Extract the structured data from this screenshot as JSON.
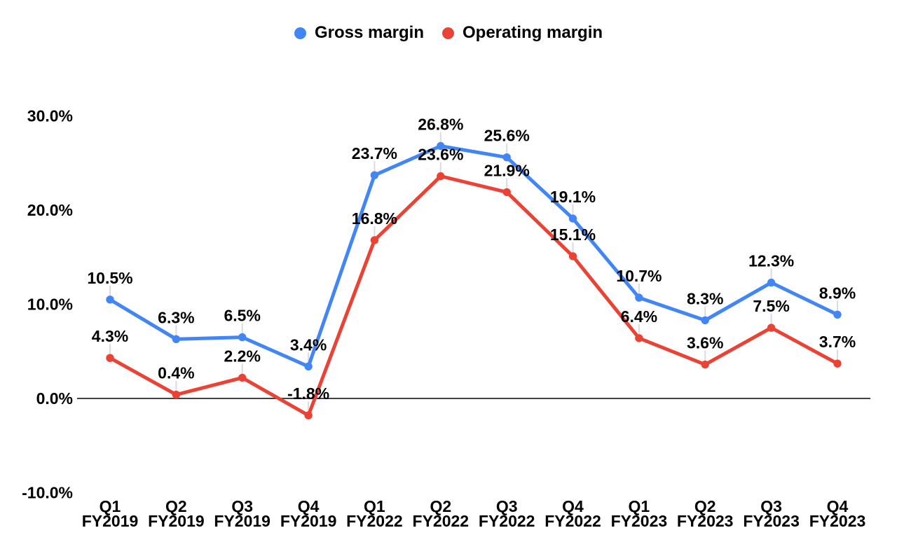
{
  "chart_data": {
    "type": "line",
    "title": "",
    "legend_position": "top",
    "grid": false,
    "ylim": [
      -10,
      30
    ],
    "ylabel": "",
    "xlabel": "",
    "y_ticks": [
      {
        "value": 30,
        "label": "30.0%"
      },
      {
        "value": 20,
        "label": "20.0%"
      },
      {
        "value": 10,
        "label": "10.0%"
      },
      {
        "value": 0,
        "label": "0.0%"
      },
      {
        "value": -10,
        "label": "-10.0%"
      }
    ],
    "categories": [
      {
        "quarter": "Q1",
        "fiscal_year": "FY2019"
      },
      {
        "quarter": "Q2",
        "fiscal_year": "FY2019"
      },
      {
        "quarter": "Q3",
        "fiscal_year": "FY2019"
      },
      {
        "quarter": "Q4",
        "fiscal_year": "FY2019"
      },
      {
        "quarter": "Q1",
        "fiscal_year": "FY2022"
      },
      {
        "quarter": "Q2",
        "fiscal_year": "FY2022"
      },
      {
        "quarter": "Q3",
        "fiscal_year": "FY2022"
      },
      {
        "quarter": "Q4",
        "fiscal_year": "FY2022"
      },
      {
        "quarter": "Q1",
        "fiscal_year": "FY2023"
      },
      {
        "quarter": "Q2",
        "fiscal_year": "FY2023"
      },
      {
        "quarter": "Q3",
        "fiscal_year": "FY2023"
      },
      {
        "quarter": "Q4",
        "fiscal_year": "FY2023"
      }
    ],
    "series": [
      {
        "name": "Gross margin",
        "color": "#4285F4",
        "values": [
          10.5,
          6.3,
          6.5,
          3.4,
          23.7,
          26.8,
          25.6,
          19.1,
          10.7,
          8.3,
          12.3,
          8.9
        ],
        "labels": [
          "10.5%",
          "6.3%",
          "6.5%",
          "3.4%",
          "23.7%",
          "26.8%",
          "25.6%",
          "19.1%",
          "10.7%",
          "8.3%",
          "12.3%",
          "8.9%"
        ]
      },
      {
        "name": "Operating margin",
        "color": "#EA4335",
        "values": [
          4.3,
          0.4,
          2.2,
          -1.8,
          16.8,
          23.6,
          21.9,
          15.1,
          6.4,
          3.6,
          7.5,
          3.7
        ],
        "labels": [
          "4.3%",
          "0.4%",
          "2.2%",
          "-1.8%",
          "16.8%",
          "23.6%",
          "21.9%",
          "15.1%",
          "6.4%",
          "3.6%",
          "7.5%",
          "3.7%"
        ]
      }
    ],
    "colors": {
      "axis_line": "#424242",
      "leader_line": "#DADCE0",
      "label_text": "#000000",
      "background": "#FFFFFF"
    }
  }
}
